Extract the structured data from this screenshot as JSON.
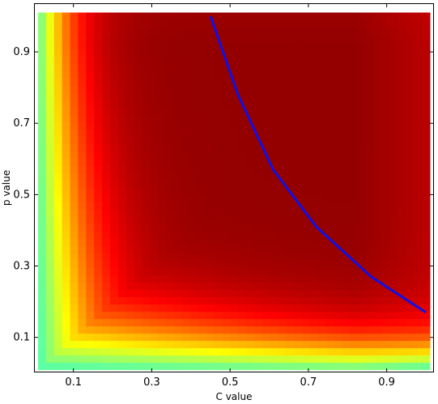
{
  "chart_data": {
    "type": "heatmap",
    "title": "",
    "xlabel": "C value",
    "ylabel": "p value",
    "xlim": [
      0.02,
      1.0
    ],
    "ylim": [
      0.02,
      1.0
    ],
    "x_ticks": [
      0.1,
      0.3,
      0.5,
      0.7,
      0.9
    ],
    "y_ticks": [
      0.1,
      0.3,
      0.5,
      0.7,
      0.9
    ],
    "x_tick_labels": [
      "0.1",
      "0.3",
      "0.5",
      "0.7",
      "0.9"
    ],
    "y_tick_labels": [
      "0.1",
      "0.3",
      "0.5",
      "0.7",
      "0.9"
    ],
    "grid": false,
    "colormap": "jet",
    "grid_resolution": [
      49,
      49
    ],
    "overlay_line": {
      "color": "#1010e6",
      "x": [
        0.45,
        0.52,
        0.61,
        0.72,
        0.86,
        1.0
      ],
      "y": [
        1.0,
        0.78,
        0.57,
        0.41,
        0.27,
        0.17
      ]
    }
  }
}
